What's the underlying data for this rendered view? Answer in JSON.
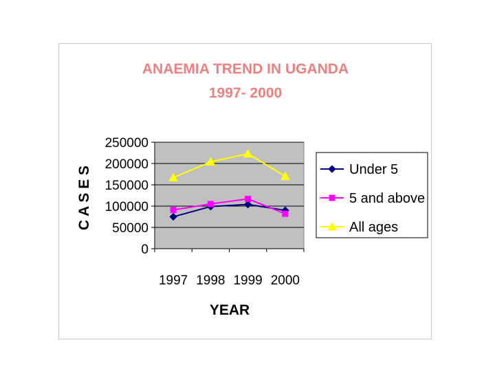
{
  "chart_data": {
    "type": "line",
    "title": "ANAEMIA TREND IN UGANDA",
    "subtitle": "1997- 2000",
    "xlabel": "YEAR",
    "ylabel": "C A S E S",
    "categories": [
      "1997",
      "1998",
      "1999",
      "2000"
    ],
    "ylim": [
      0,
      250000
    ],
    "yticks": [
      0,
      50000,
      100000,
      150000,
      200000,
      250000
    ],
    "ytick_labels": [
      "0",
      "50000",
      "100000",
      "150000",
      "200000",
      "250000"
    ],
    "grid": true,
    "legend_position": "right",
    "series": [
      {
        "name": "Under 5",
        "values": [
          75000,
          99000,
          104000,
          90000
        ],
        "color": "#000080",
        "marker": "diamond"
      },
      {
        "name": "5 and above",
        "values": [
          91000,
          105000,
          117000,
          82000
        ],
        "color": "#ff00ff",
        "marker": "square"
      },
      {
        "name": "All ages",
        "values": [
          167000,
          204000,
          223000,
          170000
        ],
        "color": "#ffff00",
        "marker": "triangle"
      }
    ]
  },
  "colors": {
    "plot_bg": "#c0c0c0",
    "title": "#f08080",
    "frame": "#c8c8c8"
  }
}
